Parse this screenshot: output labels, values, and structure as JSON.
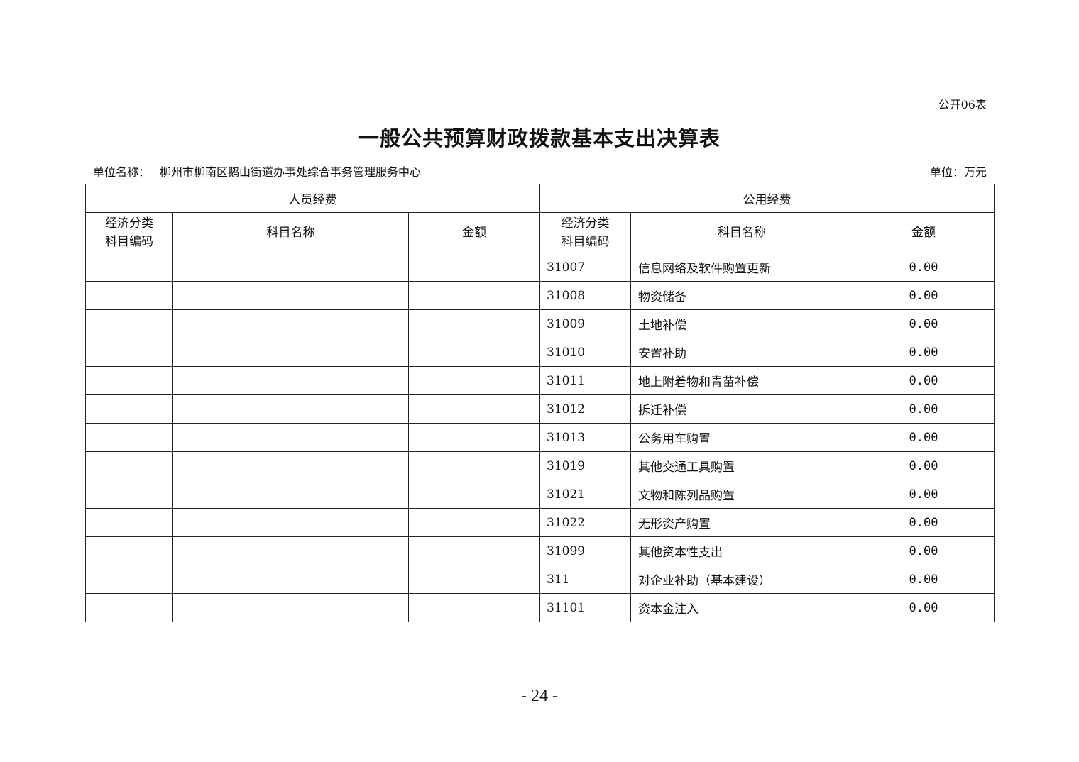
{
  "form_number": "公开06表",
  "title": "一般公共预算财政拨款基本支出决算表",
  "unit_name_label": "单位名称：",
  "unit_name": "柳州市柳南区鹅山街道办事处综合事务管理服务中心",
  "unit": "单位：万元",
  "table": {
    "group_personnel": "人员经费",
    "group_public": "公用经费",
    "col_code_line1": "经济分类",
    "col_code_line2": "科目编码",
    "col_name": "科目名称",
    "col_amount": "金额",
    "rows": [
      {
        "p_code": "",
        "p_name": "",
        "p_amount": "",
        "code": "31007",
        "name": "信息网络及软件购置更新",
        "amount": "0.00"
      },
      {
        "p_code": "",
        "p_name": "",
        "p_amount": "",
        "code": "31008",
        "name": "物资储备",
        "amount": "0.00"
      },
      {
        "p_code": "",
        "p_name": "",
        "p_amount": "",
        "code": "31009",
        "name": "土地补偿",
        "amount": "0.00"
      },
      {
        "p_code": "",
        "p_name": "",
        "p_amount": "",
        "code": "31010",
        "name": "安置补助",
        "amount": "0.00"
      },
      {
        "p_code": "",
        "p_name": "",
        "p_amount": "",
        "code": "31011",
        "name": "地上附着物和青苗补偿",
        "amount": "0.00"
      },
      {
        "p_code": "",
        "p_name": "",
        "p_amount": "",
        "code": "31012",
        "name": "拆迁补偿",
        "amount": "0.00"
      },
      {
        "p_code": "",
        "p_name": "",
        "p_amount": "",
        "code": "31013",
        "name": "公务用车购置",
        "amount": "0.00"
      },
      {
        "p_code": "",
        "p_name": "",
        "p_amount": "",
        "code": "31019",
        "name": "其他交通工具购置",
        "amount": "0.00"
      },
      {
        "p_code": "",
        "p_name": "",
        "p_amount": "",
        "code": "31021",
        "name": "文物和陈列品购置",
        "amount": "0.00"
      },
      {
        "p_code": "",
        "p_name": "",
        "p_amount": "",
        "code": "31022",
        "name": "无形资产购置",
        "amount": "0.00"
      },
      {
        "p_code": "",
        "p_name": "",
        "p_amount": "",
        "code": "31099",
        "name": "其他资本性支出",
        "amount": "0.00"
      },
      {
        "p_code": "",
        "p_name": "",
        "p_amount": "",
        "code": "311",
        "name": "对企业补助（基本建设）",
        "amount": "0.00"
      },
      {
        "p_code": "",
        "p_name": "",
        "p_amount": "",
        "code": "31101",
        "name": "资本金注入",
        "amount": "0.00"
      }
    ]
  },
  "page_number": "- 24 -"
}
